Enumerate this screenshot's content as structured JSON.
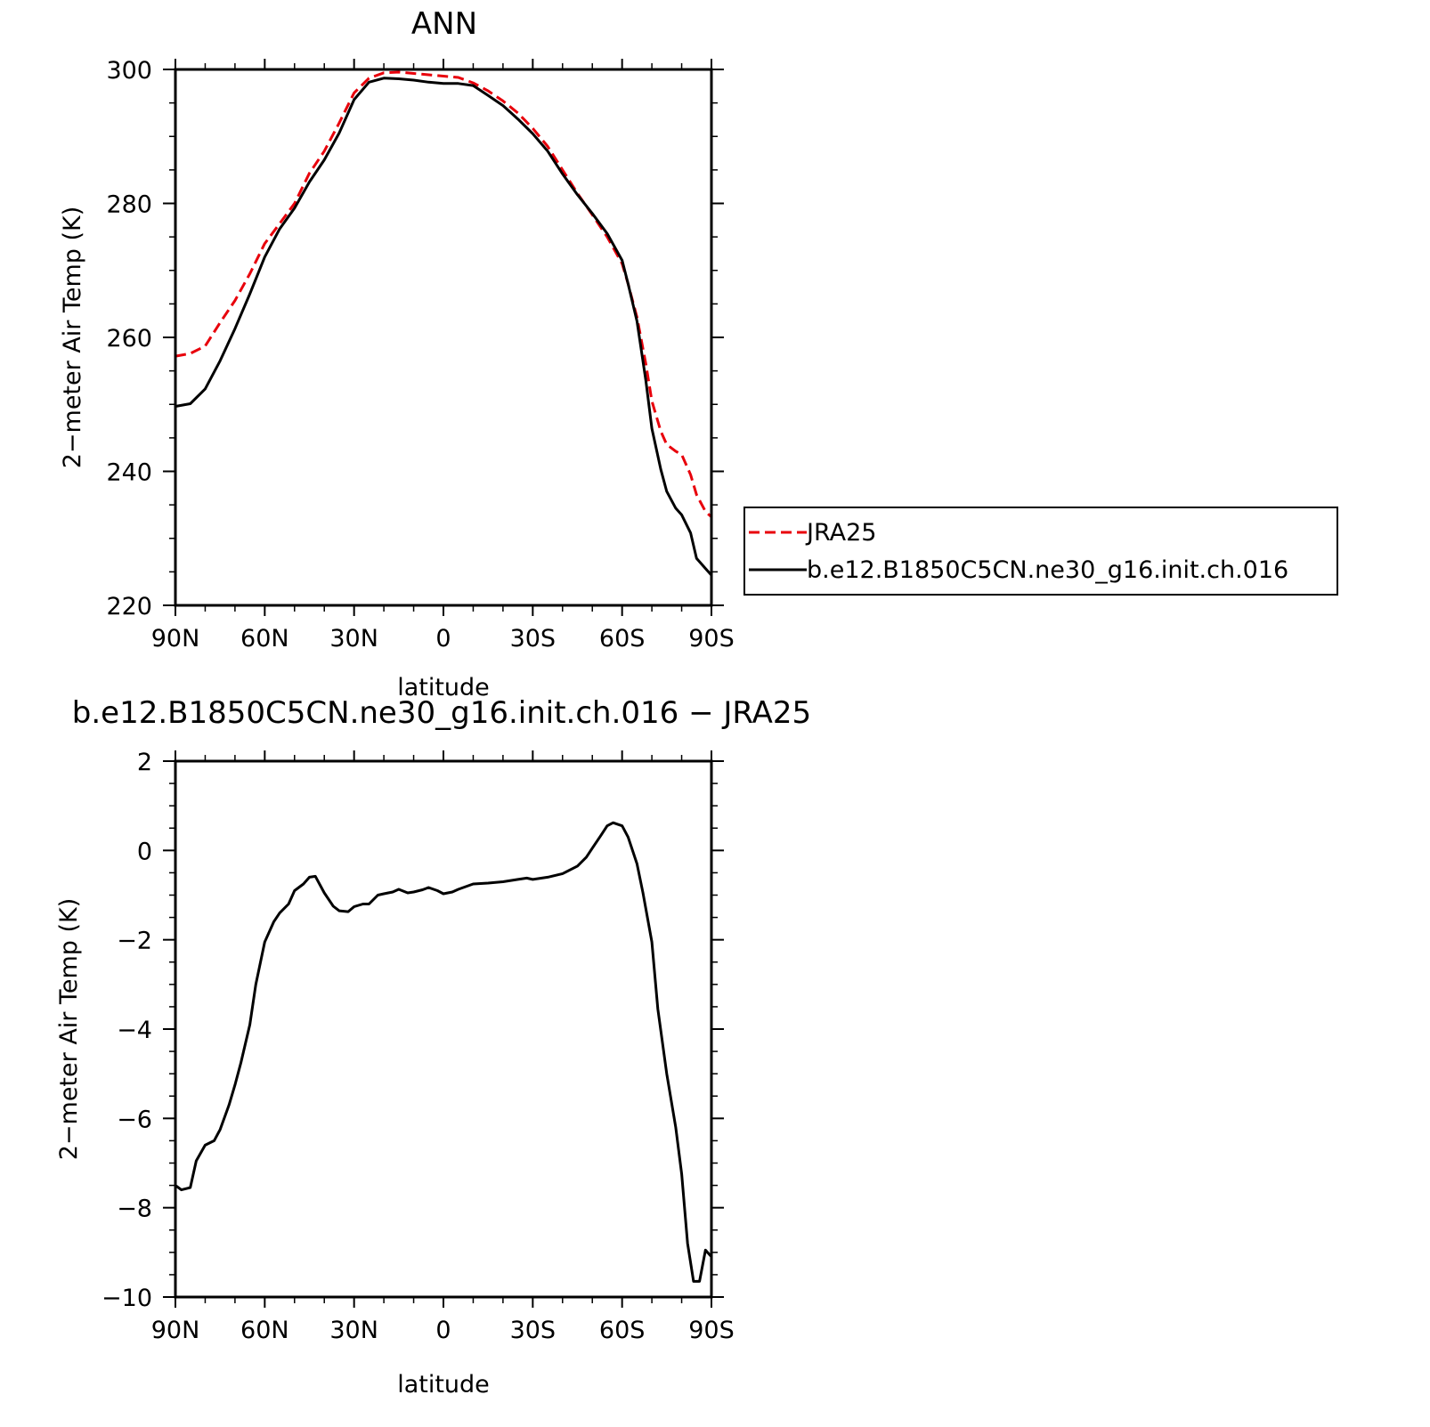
{
  "chart_data": [
    {
      "type": "line",
      "title": "ANN",
      "xlabel": "latitude",
      "ylabel": "2−meter Air Temp (K)",
      "xlim": [
        90,
        -90
      ],
      "ylim": [
        220,
        300
      ],
      "x_ticks": [
        {
          "value": 90,
          "label": "90N"
        },
        {
          "value": 60,
          "label": "60N"
        },
        {
          "value": 30,
          "label": "30N"
        },
        {
          "value": 0,
          "label": "0"
        },
        {
          "value": -30,
          "label": "30S"
        },
        {
          "value": -60,
          "label": "60S"
        },
        {
          "value": -90,
          "label": "90S"
        }
      ],
      "y_ticks": [
        {
          "value": 220,
          "label": "220"
        },
        {
          "value": 240,
          "label": "240"
        },
        {
          "value": 260,
          "label": "260"
        },
        {
          "value": 280,
          "label": "280"
        },
        {
          "value": 300,
          "label": "300"
        }
      ],
      "legend_position": "right",
      "series": [
        {
          "name": "JRA25",
          "color": "#e8000b",
          "dash": "dashed",
          "x": [
            90,
            85,
            80,
            75,
            70,
            65,
            60,
            55,
            50,
            45,
            40,
            35,
            30,
            25,
            20,
            15,
            10,
            5,
            0,
            -5,
            -10,
            -15,
            -20,
            -25,
            -30,
            -35,
            -40,
            -45,
            -50,
            -55,
            -60,
            -62,
            -65,
            -68,
            -70,
            -73,
            -75,
            -78,
            -80,
            -83,
            -85,
            -88,
            -90
          ],
          "y": [
            257.2,
            257.6,
            258.7,
            262.2,
            265.5,
            269.5,
            274,
            277,
            280,
            284.5,
            287.8,
            292,
            296.5,
            298.7,
            299.5,
            299.6,
            299.4,
            299.2,
            299,
            298.8,
            298,
            296.8,
            295.3,
            293.5,
            291.2,
            288.5,
            285,
            281.5,
            278.3,
            275,
            271,
            268,
            263,
            256,
            250.5,
            246,
            244,
            243,
            242.5,
            239.5,
            236.5,
            234,
            233.2
          ]
        },
        {
          "name": "b.e12.B1850C5CN.ne30_g16.init.ch.016",
          "color": "#000000",
          "dash": "solid",
          "x": [
            90,
            85,
            80,
            75,
            70,
            65,
            60,
            55,
            50,
            45,
            40,
            35,
            30,
            25,
            20,
            15,
            10,
            5,
            0,
            -5,
            -10,
            -15,
            -20,
            -25,
            -30,
            -35,
            -40,
            -45,
            -50,
            -55,
            -60,
            -62,
            -65,
            -68,
            -70,
            -73,
            -75,
            -78,
            -80,
            -83,
            -85,
            -88,
            -90
          ],
          "y": [
            249.7,
            250.1,
            252.3,
            256.5,
            261.3,
            266.5,
            272,
            276.2,
            279.3,
            283.2,
            286.5,
            290.5,
            295.5,
            298.1,
            298.7,
            298.6,
            298.4,
            298.1,
            297.9,
            297.9,
            297.6,
            296.1,
            294.6,
            292.6,
            290.4,
            287.8,
            284.4,
            281.3,
            278.5,
            275.5,
            271.5,
            268,
            262.4,
            253.5,
            246.4,
            240.3,
            237,
            234.5,
            233.5,
            230.8,
            227,
            225.5,
            224.5
          ]
        }
      ]
    },
    {
      "type": "line",
      "title": "b.e12.B1850C5CN.ne30_g16.init.ch.016 − JRA25",
      "xlabel": "latitude",
      "ylabel": "2−meter Air Temp (K)",
      "xlim": [
        90,
        -90
      ],
      "ylim": [
        -10,
        2
      ],
      "x_ticks": [
        {
          "value": 90,
          "label": "90N"
        },
        {
          "value": 60,
          "label": "60N"
        },
        {
          "value": 30,
          "label": "30N"
        },
        {
          "value": 0,
          "label": "0"
        },
        {
          "value": -30,
          "label": "30S"
        },
        {
          "value": -60,
          "label": "60S"
        },
        {
          "value": -90,
          "label": "90S"
        }
      ],
      "y_ticks": [
        {
          "value": -10,
          "label": "−10"
        },
        {
          "value": -8,
          "label": "−8"
        },
        {
          "value": -6,
          "label": "−6"
        },
        {
          "value": -4,
          "label": "−4"
        },
        {
          "value": -2,
          "label": "−2"
        },
        {
          "value": 0,
          "label": "0"
        },
        {
          "value": 2,
          "label": "2"
        }
      ],
      "series": [
        {
          "color": "#000000",
          "dash": "solid",
          "x": [
            90,
            88,
            85,
            83,
            80,
            77,
            75,
            72,
            70,
            68,
            65,
            63,
            60,
            57,
            55,
            52,
            50,
            47,
            45,
            43,
            40,
            37,
            35,
            32,
            30,
            27,
            25,
            22,
            20,
            17,
            15,
            12,
            10,
            7,
            5,
            2,
            0,
            -3,
            -5,
            -10,
            -15,
            -20,
            -25,
            -28,
            -30,
            -35,
            -40,
            -45,
            -48,
            -50,
            -53,
            -55,
            -57,
            -60,
            -62,
            -65,
            -67,
            -70,
            -72,
            -75,
            -78,
            -80,
            -82,
            -84,
            -86,
            -88,
            -90
          ],
          "y": [
            -7.5,
            -7.6,
            -7.55,
            -6.95,
            -6.6,
            -6.5,
            -6.25,
            -5.7,
            -5.25,
            -4.75,
            -3.9,
            -3,
            -2.05,
            -1.6,
            -1.4,
            -1.2,
            -0.9,
            -0.75,
            -0.6,
            -0.58,
            -0.95,
            -1.25,
            -1.35,
            -1.37,
            -1.26,
            -1.2,
            -1.2,
            -1.0,
            -0.97,
            -0.93,
            -0.87,
            -0.95,
            -0.93,
            -0.88,
            -0.83,
            -0.9,
            -0.97,
            -0.93,
            -0.87,
            -0.75,
            -0.73,
            -0.7,
            -0.65,
            -0.62,
            -0.65,
            -0.6,
            -0.52,
            -0.35,
            -0.15,
            0.05,
            0.35,
            0.55,
            0.62,
            0.55,
            0.3,
            -0.3,
            -0.95,
            -2.05,
            -3.55,
            -5,
            -6.2,
            -7.25,
            -8.8,
            -9.65,
            -9.65,
            -8.95,
            -9.1
          ]
        }
      ]
    }
  ],
  "legend": {
    "entries": [
      {
        "label": "JRA25"
      },
      {
        "label": "b.e12.B1850C5CN.ne30_g16.init.ch.016"
      }
    ]
  }
}
